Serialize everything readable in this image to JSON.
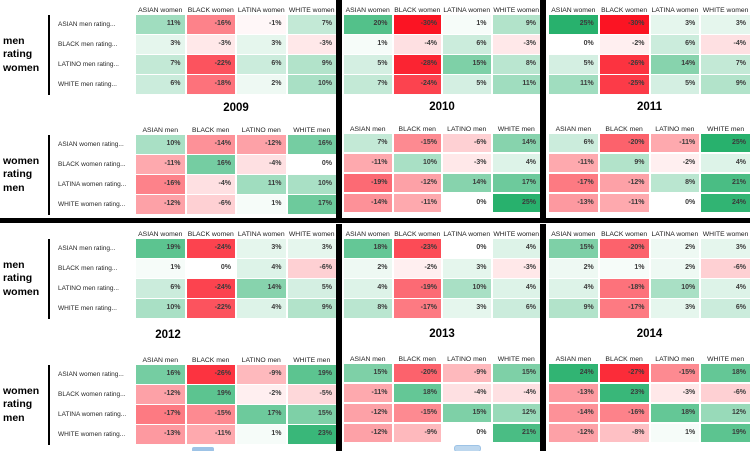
{
  "colors": {
    "positive_max": "#28B16D",
    "negative_max": "#FB1423",
    "neutral": "#FFFFFF",
    "divider": "#000000",
    "artifact_blue": "#9DC3E6",
    "artifact_blue_light": "#BDD7EE"
  },
  "scale": {
    "positive_limit": 25,
    "negative_limit": -30
  },
  "chart_data": [
    {
      "type": "heatmap",
      "year": "2009",
      "group": "men rating women",
      "unit": "%",
      "rows": [
        "ASIAN men rating...",
        "BLACK men rating...",
        "LATINO men rating...",
        "WHITE men rating..."
      ],
      "cols": [
        "ASIAN women",
        "BLACK women",
        "LATINA women",
        "WHITE women"
      ],
      "values": [
        [
          11,
          -16,
          -1,
          7
        ],
        [
          3,
          -3,
          3,
          -3
        ],
        [
          7,
          -22,
          6,
          9
        ],
        [
          6,
          -18,
          2,
          10
        ]
      ]
    },
    {
      "type": "heatmap",
      "year": "2009",
      "group": "women rating men",
      "unit": "%",
      "rows": [
        "ASIAN women rating...",
        "BLACK women rating...",
        "LATINA women rating...",
        "WHITE women rating..."
      ],
      "cols": [
        "ASIAN men",
        "BLACK men",
        "LATINO men",
        "WHITE men"
      ],
      "values": [
        [
          10,
          -14,
          -12,
          16
        ],
        [
          -11,
          16,
          -4,
          0
        ],
        [
          -16,
          -4,
          11,
          10
        ],
        [
          -12,
          -6,
          1,
          17
        ]
      ]
    },
    {
      "type": "heatmap",
      "year": "2010",
      "group": "men rating women",
      "unit": "%",
      "rows": [
        "ASIAN men rating...",
        "BLACK men rating...",
        "LATINO men rating...",
        "WHITE men rating..."
      ],
      "cols": [
        "ASIAN women",
        "BLACK women",
        "LATINA women",
        "WHITE women"
      ],
      "values": [
        [
          20,
          -30,
          1,
          9
        ],
        [
          1,
          -4,
          6,
          -3
        ],
        [
          5,
          -28,
          15,
          8
        ],
        [
          7,
          -24,
          5,
          11
        ]
      ]
    },
    {
      "type": "heatmap",
      "year": "2010",
      "group": "women rating men",
      "unit": "%",
      "rows": [
        "ASIAN women rating...",
        "BLACK women rating...",
        "LATINA women rating...",
        "WHITE women rating..."
      ],
      "cols": [
        "ASIAN men",
        "BLACK men",
        "LATINO men",
        "WHITE men"
      ],
      "values": [
        [
          7,
          -15,
          -6,
          14
        ],
        [
          -11,
          10,
          -3,
          4
        ],
        [
          -19,
          -12,
          14,
          17
        ],
        [
          -14,
          -11,
          0,
          25
        ]
      ]
    },
    {
      "type": "heatmap",
      "year": "2011",
      "group": "men rating women",
      "unit": "%",
      "rows": [
        "ASIAN men rating...",
        "BLACK men rating...",
        "LATINO men rating...",
        "WHITE men rating..."
      ],
      "cols": [
        "ASIAN women",
        "BLACK women",
        "LATINA women",
        "WHITE women"
      ],
      "values": [
        [
          25,
          -30,
          3,
          3
        ],
        [
          0,
          -2,
          6,
          -4
        ],
        [
          5,
          -26,
          14,
          7
        ],
        [
          11,
          -25,
          5,
          9
        ]
      ]
    },
    {
      "type": "heatmap",
      "year": "2011",
      "group": "women rating men",
      "unit": "%",
      "rows": [
        "ASIAN women rating...",
        "BLACK women rating...",
        "LATINA women rating...",
        "WHITE women rating..."
      ],
      "cols": [
        "ASIAN men",
        "BLACK men",
        "LATINO men",
        "WHITE men"
      ],
      "values": [
        [
          6,
          -20,
          -11,
          25
        ],
        [
          -11,
          9,
          -2,
          4
        ],
        [
          -17,
          -12,
          8,
          21
        ],
        [
          -13,
          -11,
          0,
          24
        ]
      ]
    },
    {
      "type": "heatmap",
      "year": "2012",
      "group": "men rating women",
      "unit": "%",
      "rows": [
        "ASIAN men rating...",
        "BLACK men rating...",
        "LATINO men rating...",
        "WHITE men rating..."
      ],
      "cols": [
        "ASIAN women",
        "BLACK women",
        "LATINA women",
        "WHITE women"
      ],
      "values": [
        [
          19,
          -24,
          3,
          3
        ],
        [
          1,
          0,
          4,
          -6
        ],
        [
          6,
          -24,
          14,
          5
        ],
        [
          10,
          -22,
          4,
          9
        ]
      ]
    },
    {
      "type": "heatmap",
      "year": "2012",
      "group": "women rating men",
      "unit": "%",
      "rows": [
        "ASIAN women rating...",
        "BLACK women rating...",
        "LATINA women rating...",
        "WHITE women rating..."
      ],
      "cols": [
        "ASIAN men",
        "BLACK men",
        "LATINO men",
        "WHITE men"
      ],
      "values": [
        [
          16,
          -26,
          -9,
          19
        ],
        [
          -12,
          19,
          -2,
          -5
        ],
        [
          -17,
          -15,
          17,
          15
        ],
        [
          -13,
          -11,
          1,
          23
        ]
      ]
    },
    {
      "type": "heatmap",
      "year": "2013",
      "group": "men rating women",
      "unit": "%",
      "rows": [
        "ASIAN men rating...",
        "BLACK men rating...",
        "LATINO men rating...",
        "WHITE men rating..."
      ],
      "cols": [
        "ASIAN women",
        "BLACK women",
        "LATINA women",
        "WHITE women"
      ],
      "values": [
        [
          18,
          -23,
          0,
          4
        ],
        [
          2,
          -2,
          3,
          -3
        ],
        [
          4,
          -19,
          10,
          4
        ],
        [
          8,
          -17,
          3,
          6
        ]
      ]
    },
    {
      "type": "heatmap",
      "year": "2013",
      "group": "women rating men",
      "unit": "%",
      "rows": [
        "ASIAN women rating...",
        "BLACK women rating...",
        "LATINA women rating...",
        "WHITE women rating..."
      ],
      "cols": [
        "ASIAN men",
        "BLACK men",
        "LATINO men",
        "WHITE men"
      ],
      "values": [
        [
          15,
          -20,
          -9,
          15
        ],
        [
          -11,
          18,
          -4,
          -4
        ],
        [
          -12,
          -15,
          15,
          12
        ],
        [
          -12,
          -9,
          0,
          21
        ]
      ]
    },
    {
      "type": "heatmap",
      "year": "2014",
      "group": "men rating women",
      "unit": "%",
      "rows": [
        "ASIAN men rating...",
        "BLACK men rating...",
        "LATINO men rating...",
        "WHITE men rating..."
      ],
      "cols": [
        "ASIAN women",
        "BLACK women",
        "LATINA women",
        "WHITE women"
      ],
      "values": [
        [
          15,
          -20,
          2,
          3
        ],
        [
          2,
          1,
          2,
          -6
        ],
        [
          4,
          -18,
          10,
          4
        ],
        [
          9,
          -17,
          3,
          6
        ]
      ]
    },
    {
      "type": "heatmap",
      "year": "2014",
      "group": "women rating men",
      "unit": "%",
      "rows": [
        "ASIAN women rating...",
        "BLACK women rating...",
        "LATINA women rating...",
        "WHITE women rating..."
      ],
      "cols": [
        "ASIAN men",
        "BLACK men",
        "LATINO men",
        "WHITE men"
      ],
      "values": [
        [
          24,
          -27,
          -15,
          18
        ],
        [
          -13,
          23,
          -3,
          -6
        ],
        [
          -14,
          -16,
          18,
          12
        ],
        [
          -12,
          -8,
          1,
          19
        ]
      ]
    }
  ]
}
